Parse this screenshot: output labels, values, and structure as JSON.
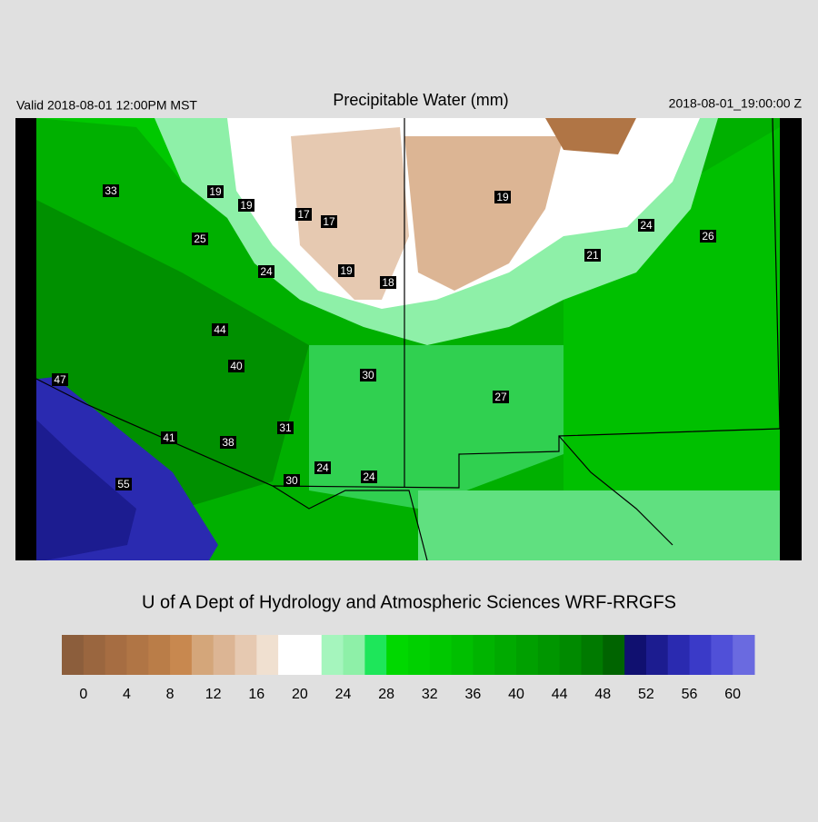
{
  "header": {
    "valid": "Valid 2018-08-01 12:00PM MST",
    "title": "Precipitable Water (mm)",
    "timestamp": "2018-08-01_19:00:00 Z"
  },
  "credit": "U of A Dept of Hydrology and Atmospheric Sciences WRF-RRGFS",
  "stations": [
    "33",
    "19",
    "19",
    "25",
    "17",
    "17",
    "19",
    "24",
    "26",
    "21",
    "24",
    "19",
    "18",
    "44",
    "40",
    "30",
    "47",
    "27",
    "31",
    "41",
    "38",
    "55",
    "30",
    "24",
    "24"
  ],
  "colorbar": {
    "colors": [
      "#8c5e3c",
      "#9a663f",
      "#a66d42",
      "#b07545",
      "#ba7d48",
      "#c8884f",
      "#d4a67a",
      "#dcb594",
      "#e6c9b1",
      "#f0e0d0",
      "#ffffff",
      "#ffffff",
      "#a5f5bd",
      "#8ef0a8",
      "#1ee65a",
      "#00d800",
      "#00d000",
      "#00c800",
      "#00bf00",
      "#00b400",
      "#00aa00",
      "#00a000",
      "#009600",
      "#008a00",
      "#007a00",
      "#006400",
      "#101070",
      "#1c1c90",
      "#2a2ab0",
      "#3a3ac8",
      "#5050d8",
      "#6a6ae0"
    ],
    "labels": [
      "0",
      "4",
      "8",
      "12",
      "16",
      "20",
      "24",
      "28",
      "32",
      "36",
      "40",
      "44",
      "48",
      "52",
      "56",
      "60"
    ]
  }
}
